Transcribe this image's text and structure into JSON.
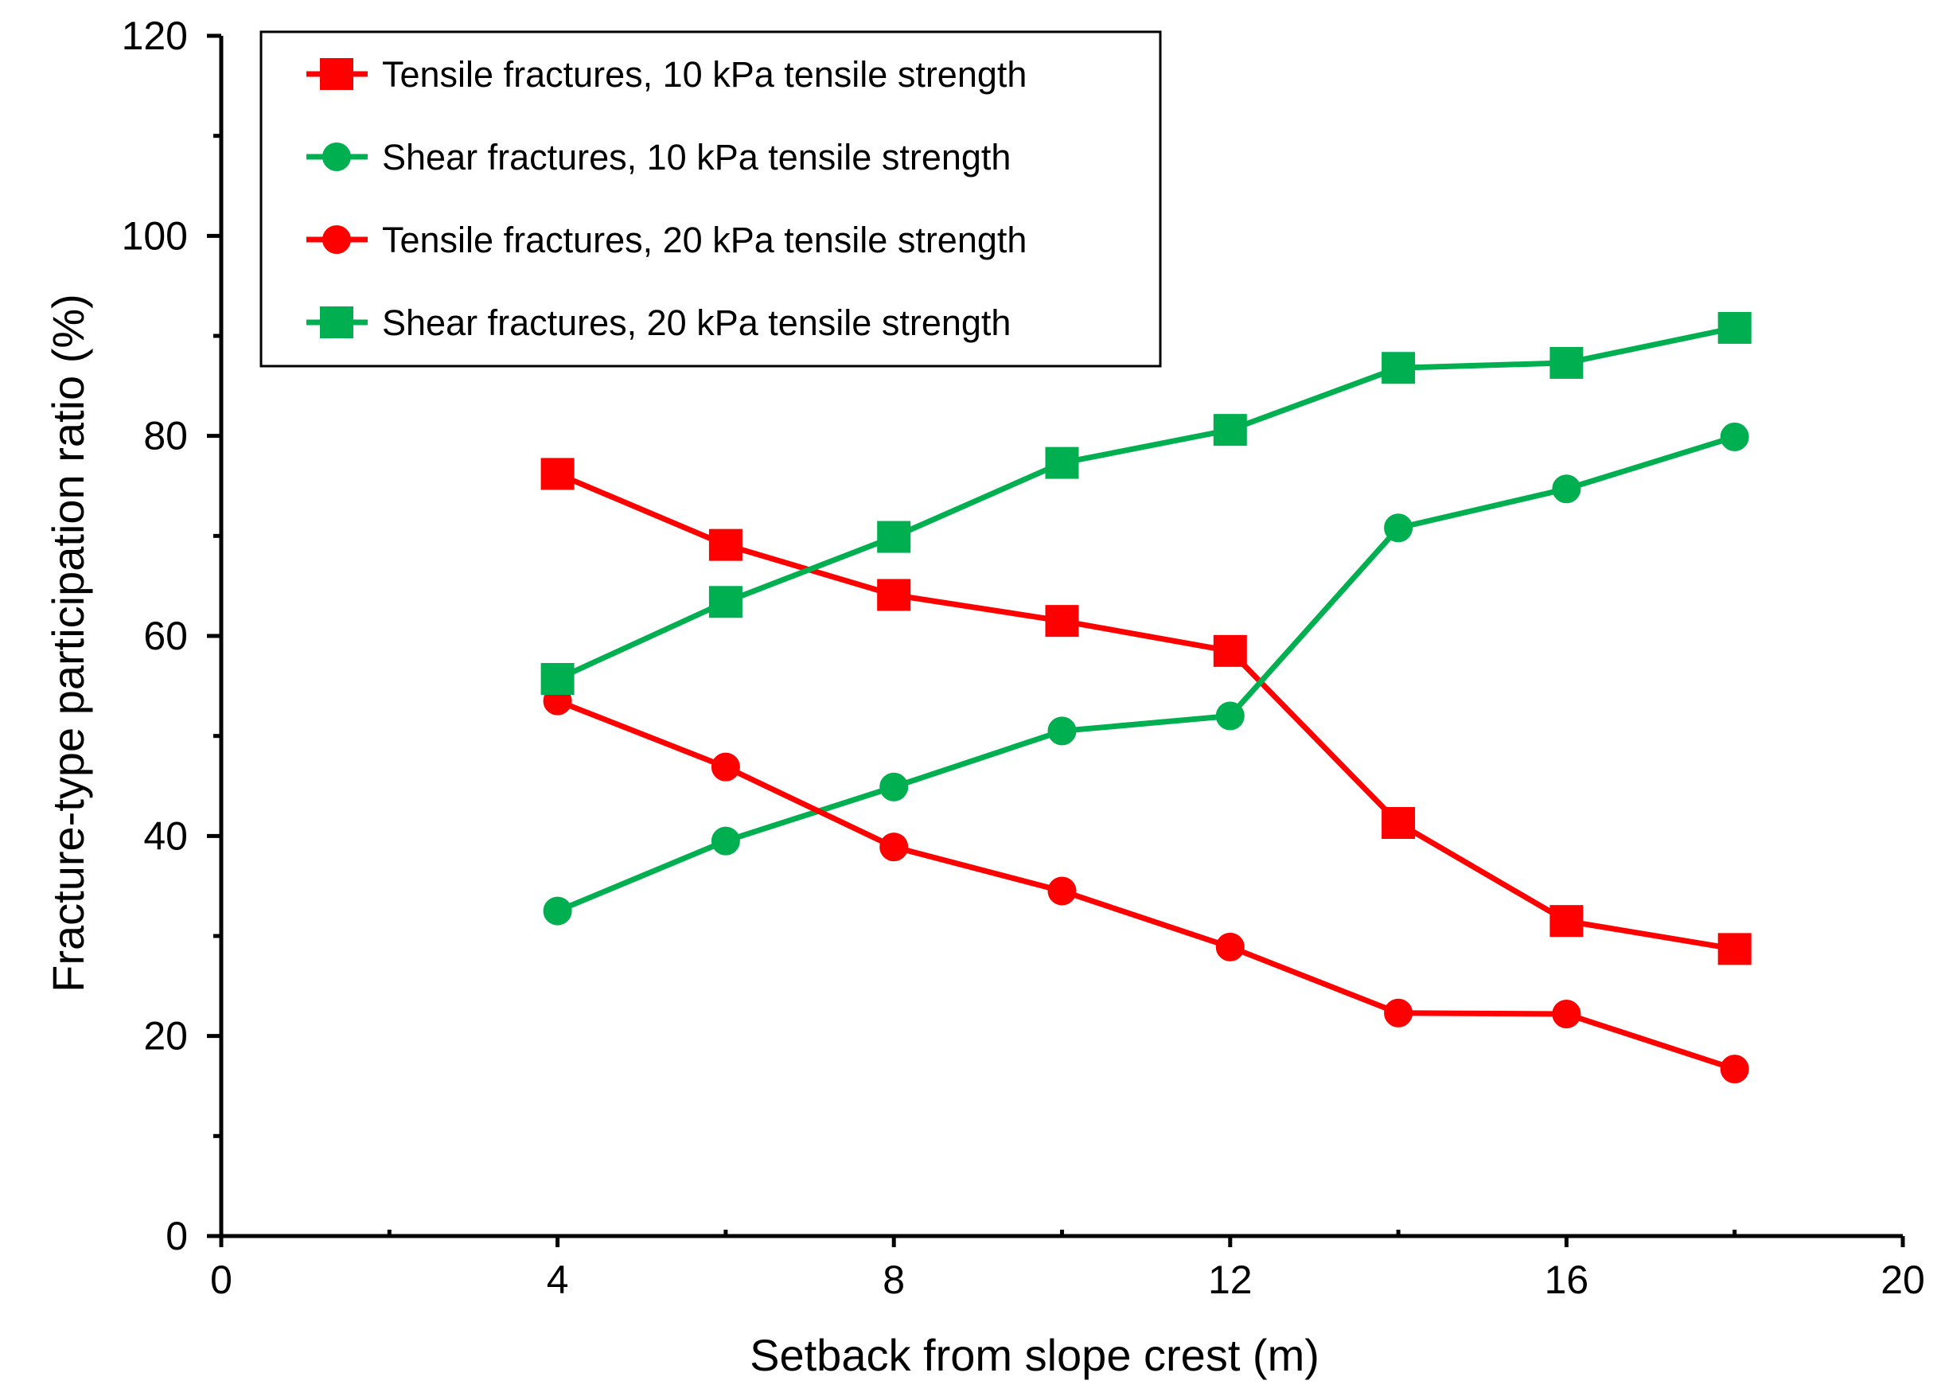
{
  "chart_data": {
    "type": "line",
    "title": "",
    "xlabel": "Setback from slope crest (m)",
    "ylabel": "Fracture-type participation ratio (%)",
    "xlim": [
      0,
      20
    ],
    "ylim": [
      0,
      120
    ],
    "xticks": [
      0,
      4,
      8,
      12,
      16,
      20
    ],
    "xticks_minor": [
      2,
      6,
      10,
      14,
      18
    ],
    "yticks": [
      0,
      20,
      40,
      60,
      80,
      100,
      120
    ],
    "yticks_minor": [
      10,
      30,
      50,
      70,
      90,
      110
    ],
    "grid": false,
    "legend_position": "top-left",
    "x": [
      4,
      6,
      8,
      10,
      12,
      14,
      16,
      18
    ],
    "series": [
      {
        "name": "Tensile fractures, 10 kPa tensile strength",
        "color": "#ff0000",
        "marker": "square",
        "values": [
          76.2,
          69.1,
          64.1,
          61.5,
          58.5,
          41.3,
          31.5,
          28.7
        ]
      },
      {
        "name": "Shear fractures, 10 kPa tensile strength",
        "color": "#00b050",
        "marker": "circle",
        "values": [
          32.5,
          39.5,
          44.9,
          50.5,
          52.0,
          70.8,
          74.7,
          79.9
        ]
      },
      {
        "name": "Tensile fractures, 20 kPa tensile strength",
        "color": "#ff0000",
        "marker": "circle",
        "values": [
          53.5,
          46.9,
          38.9,
          34.5,
          28.9,
          22.3,
          22.2,
          16.7
        ]
      },
      {
        "name": "Shear fractures, 20 kPa tensile strength",
        "color": "#00b050",
        "marker": "square",
        "values": [
          55.7,
          63.4,
          69.9,
          77.3,
          80.6,
          86.8,
          87.3,
          90.8
        ]
      }
    ]
  }
}
